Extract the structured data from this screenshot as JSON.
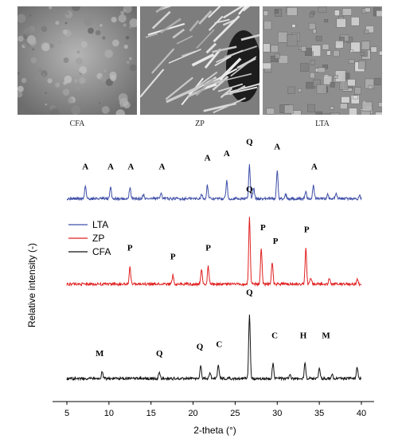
{
  "images": [
    {
      "caption": "CFA",
      "texture": "smooth-grainy"
    },
    {
      "caption": "ZP",
      "texture": "needle-crystals"
    },
    {
      "caption": "LTA",
      "texture": "cubic-grains"
    }
  ],
  "chart_data": {
    "type": "line",
    "xlabel": "2-theta (°)",
    "ylabel": "Relative intensity (-)",
    "xlim": [
      5,
      40
    ],
    "xticks": [
      5,
      10,
      15,
      20,
      25,
      30,
      35,
      40
    ],
    "grid": false,
    "legend_position": "center-left",
    "series": [
      {
        "name": "LTA",
        "color": "#3f4fa8",
        "baseline": 0.86,
        "peaks": [
          [
            7.2,
            0.06
          ],
          [
            10.2,
            0.05
          ],
          [
            12.5,
            0.05
          ],
          [
            14.1,
            0.02
          ],
          [
            16.2,
            0.03
          ],
          [
            21.0,
            0.02
          ],
          [
            21.7,
            0.06
          ],
          [
            24.0,
            0.08
          ],
          [
            26.7,
            0.15
          ],
          [
            27.2,
            0.05
          ],
          [
            30.0,
            0.13
          ],
          [
            31.0,
            0.02
          ],
          [
            33.4,
            0.03
          ],
          [
            34.3,
            0.06
          ],
          [
            36.0,
            0.02
          ],
          [
            37.0,
            0.02
          ],
          [
            39.8,
            0.015
          ]
        ]
      },
      {
        "name": "ZP",
        "color": "#e02020",
        "baseline": 0.48,
        "peaks": [
          [
            12.5,
            0.08
          ],
          [
            17.6,
            0.04
          ],
          [
            21.0,
            0.07
          ],
          [
            21.8,
            0.08
          ],
          [
            26.7,
            0.3
          ],
          [
            28.1,
            0.16
          ],
          [
            29.4,
            0.1
          ],
          [
            33.4,
            0.16
          ],
          [
            34.0,
            0.03
          ],
          [
            36.2,
            0.03
          ],
          [
            39.5,
            0.02
          ]
        ]
      },
      {
        "name": "CFA",
        "color": "#111111",
        "baseline": 0.06,
        "peaks": [
          [
            9.2,
            0.03
          ],
          [
            16.0,
            0.03
          ],
          [
            20.9,
            0.06
          ],
          [
            22.0,
            0.03
          ],
          [
            23.0,
            0.06
          ],
          [
            26.7,
            0.29
          ],
          [
            29.5,
            0.07
          ],
          [
            31.5,
            0.02
          ],
          [
            33.3,
            0.07
          ],
          [
            35.0,
            0.05
          ],
          [
            36.5,
            0.02
          ],
          [
            39.5,
            0.05
          ]
        ]
      }
    ],
    "peak_labels": [
      {
        "text": "A",
        "x": 7.2,
        "y": 0.99
      },
      {
        "text": "A",
        "x": 10.2,
        "y": 0.99
      },
      {
        "text": "A",
        "x": 12.6,
        "y": 0.99
      },
      {
        "text": "A",
        "x": 16.3,
        "y": 0.99
      },
      {
        "text": "A",
        "x": 21.7,
        "y": 1.03
      },
      {
        "text": "A",
        "x": 24.0,
        "y": 1.05
      },
      {
        "text": "Q",
        "x": 26.7,
        "y": 1.1
      },
      {
        "text": "A",
        "x": 30.0,
        "y": 1.08
      },
      {
        "text": "A",
        "x": 34.4,
        "y": 0.99
      },
      {
        "text": "Q",
        "x": 26.7,
        "y": 0.89
      },
      {
        "text": "P",
        "x": 12.5,
        "y": 0.63
      },
      {
        "text": "P",
        "x": 17.6,
        "y": 0.59
      },
      {
        "text": "P",
        "x": 21.8,
        "y": 0.63
      },
      {
        "text": "P",
        "x": 28.3,
        "y": 0.72
      },
      {
        "text": "P",
        "x": 29.8,
        "y": 0.66
      },
      {
        "text": "P",
        "x": 33.5,
        "y": 0.71
      },
      {
        "text": "M",
        "x": 8.9,
        "y": 0.16
      },
      {
        "text": "Q",
        "x": 16.0,
        "y": 0.16
      },
      {
        "text": "Q",
        "x": 20.8,
        "y": 0.19
      },
      {
        "text": "C",
        "x": 23.1,
        "y": 0.2
      },
      {
        "text": "Q",
        "x": 26.7,
        "y": 0.43
      },
      {
        "text": "C",
        "x": 29.7,
        "y": 0.24
      },
      {
        "text": "H",
        "x": 33.1,
        "y": 0.24
      },
      {
        "text": "M",
        "x": 35.8,
        "y": 0.24
      }
    ]
  }
}
